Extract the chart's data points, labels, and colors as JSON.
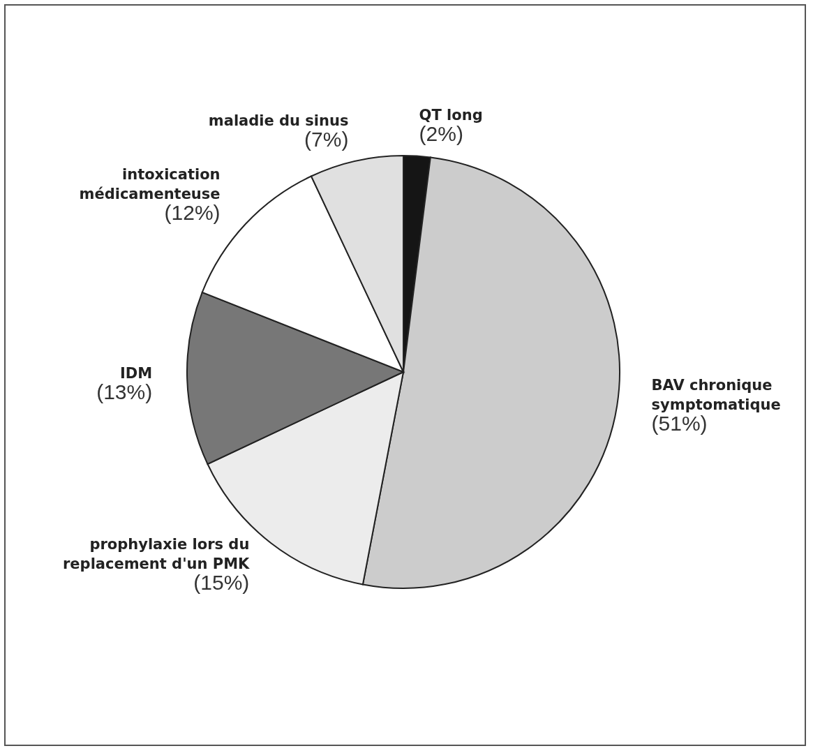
{
  "chart_data": {
    "type": "pie",
    "categories": [
      "QT long",
      "BAV chronique symptomatique",
      "prophylaxie lors du replacement d'un PMK",
      "IDM",
      "intoxication médicamenteuse",
      "maladie du sinus"
    ],
    "values": [
      2,
      51,
      15,
      13,
      12,
      7
    ],
    "colors": [
      "#151515",
      "#cccccc",
      "#ececec",
      "#777777",
      "#ffffff",
      "#e0e0e0"
    ],
    "value_labels": [
      "(2%)",
      "(51%)",
      "(15%)",
      "(13%)",
      "(12%)",
      "(7%)"
    ]
  }
}
